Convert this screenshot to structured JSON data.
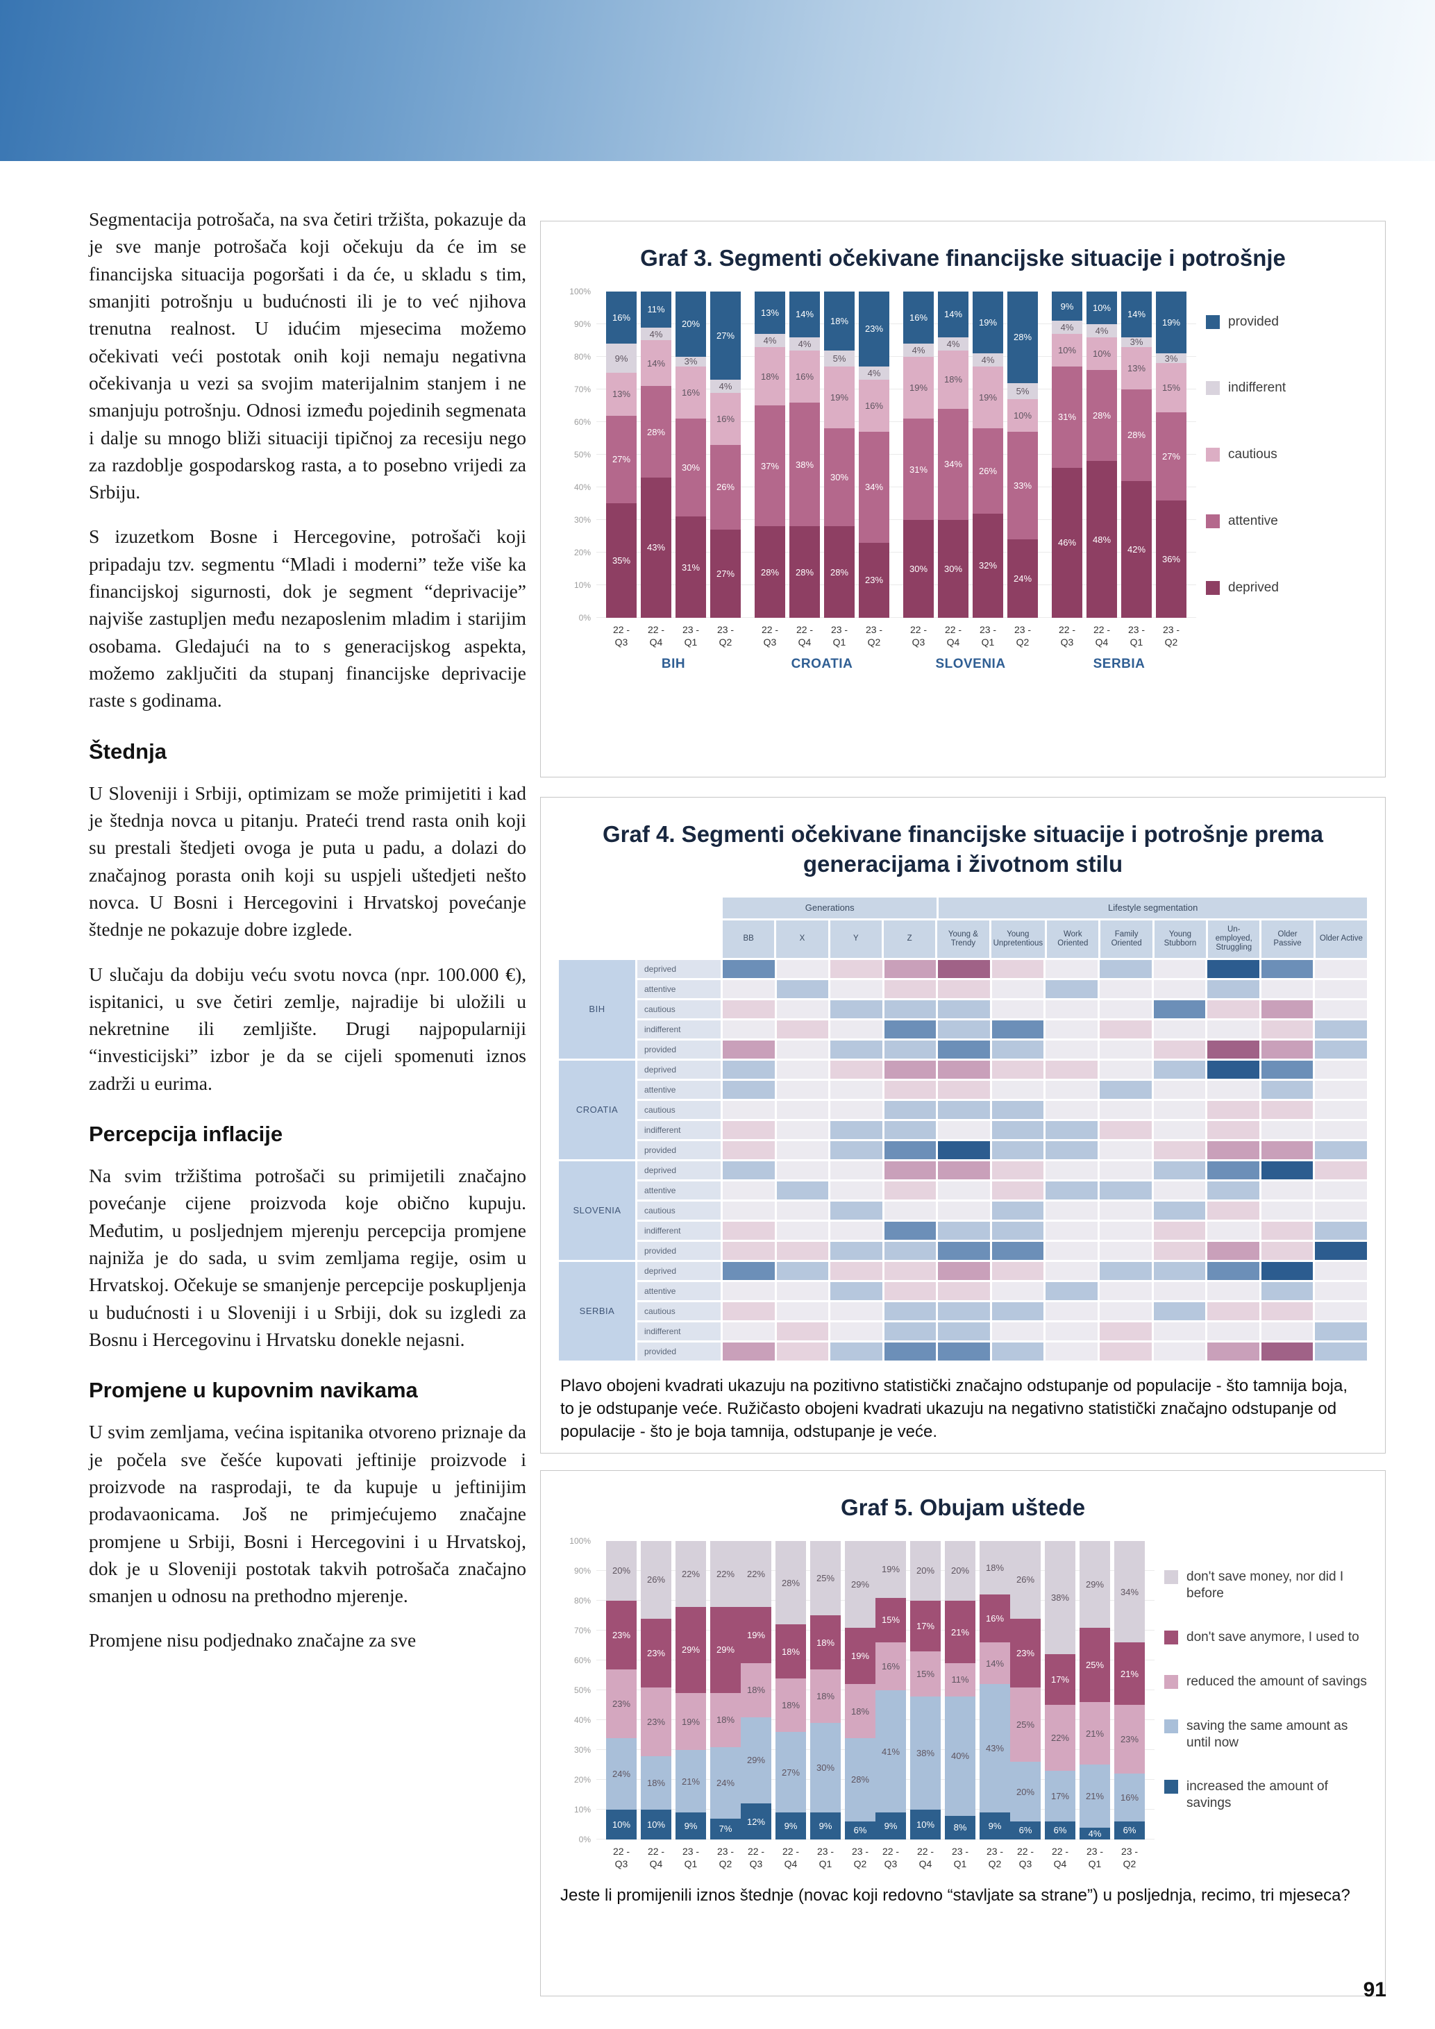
{
  "page": {
    "number": "91"
  },
  "article": {
    "sections": [
      {
        "type": "p",
        "text": "Segmentacija potrošača, na sva četiri tržišta, pokazuje da je sve manje potrošača koji očekuju da će im se financijska situacija pogoršati i da će, u skladu s tim, smanjiti potrošnju u budućnosti ili je to već njihova trenutna realnost. U idućim mjesecima možemo očekivati veći postotak onih koji nemaju negativna očekivanja u vezi sa svojim materijalnim stanjem i ne smanjuju potrošnju. Odnosi između pojedinih segmenata i dalje su mnogo bliži situaciji tipičnoj za recesiju nego za razdoblje gospodarskog rasta, a to posebno vrijedi za Srbiju."
      },
      {
        "type": "p",
        "text": "S izuzetkom Bosne i Hercegovine, potrošači koji pripadaju tzv. segmentu “Mladi i moderni” teže više ka financijskoj sigurnosti, dok je segment “deprivacije” najviše zastupljen među nezaposlenim mladim i starijim osobama. Gledajući na to s generacijskog aspekta, možemo zaključiti da stupanj financijske deprivacije raste s godinama."
      },
      {
        "type": "h",
        "text": "Štednja"
      },
      {
        "type": "p",
        "text": "U Sloveniji i Srbiji, optimizam se može primijetiti i kad je štednja novca u pitanju. Prateći trend rasta onih koji su prestali štedjeti ovoga je puta u padu, a dolazi do značajnog porasta onih koji su uspjeli uštedjeti nešto novca. U Bosni i Hercegovini i Hrvatskoj povećanje štednje ne pokazuje dobre izglede."
      },
      {
        "type": "p",
        "text": "U slučaju da dobiju veću svotu novca (npr. 100.000 €), ispitanici, u sve četiri zemlje, najradije bi uložili u nekretnine ili zemljište. Drugi najpopularniji “investicijski” izbor je da se cijeli spomenuti iznos zadrži u eurima."
      },
      {
        "type": "h",
        "text": "Percepcija inflacije"
      },
      {
        "type": "p",
        "text": "Na svim tržištima potrošači su primijetili značajno povećanje cijene proizvoda koje obično kupuju. Međutim, u posljednjem mjerenju percepcija promjene najniža je do sada, u svim zemljama regije, osim u Hrvatskoj. Očekuje se smanjenje percepcije poskupljenja u budućnosti i u Sloveniji i u Srbiji, dok su izgledi za Bosnu i Hercegovinu i Hrvatsku donekle nejasni."
      },
      {
        "type": "h",
        "text": "Promjene u kupovnim navikama"
      },
      {
        "type": "p",
        "text": "U svim zemljama, većina ispitanika otvoreno priznaje da je počela sve češće kupovati jeftinije proizvode i proizvode na rasprodaji, te da kupuje u jeftinijim prodavaonicama. Još ne primjećujemo značajne promjene u Srbiji, Bosni i Hercegovini i u Hrvatskoj, dok je u Sloveniji postotak takvih potrošača značajno smanjen u odnosu na prethodno mjerenje."
      },
      {
        "type": "p",
        "text": "Promjene nisu podjednako značajne za sve"
      }
    ]
  },
  "chart_data": [
    {
      "id": "graf3",
      "type": "bar",
      "stacked": true,
      "title": "Graf 3. Segmenti očekivane financijske situacije i potrošnje",
      "unit": "%",
      "ylim": [
        0,
        100
      ],
      "y_step": 10,
      "grid": true,
      "legend_position": "right",
      "show_group_labels": true,
      "x_ticks": [
        "22 - Q3",
        "22 - Q4",
        "23 - Q1",
        "23 - Q2"
      ],
      "series_order_bottom_to_top": [
        "deprived",
        "attentive",
        "cautious",
        "indifferent",
        "provided"
      ],
      "colors": [
        "#8e3f63",
        "#b4688c",
        "#dcaec4",
        "#d9d3dd",
        "#2d5f8d"
      ],
      "legend": [
        "provided",
        "indifferent",
        "cautious",
        "attentive",
        "deprived"
      ],
      "groups": [
        {
          "label": "BIH",
          "bars": [
            [
              35,
              27,
              13,
              9,
              16
            ],
            [
              43,
              28,
              14,
              4,
              11
            ],
            [
              31,
              30,
              16,
              3,
              20
            ],
            [
              27,
              26,
              16,
              4,
              27
            ]
          ]
        },
        {
          "label": "CROATIA",
          "bars": [
            [
              28,
              37,
              18,
              4,
              13
            ],
            [
              28,
              38,
              16,
              4,
              14
            ],
            [
              28,
              30,
              19,
              5,
              18
            ],
            [
              23,
              34,
              16,
              4,
              23
            ]
          ]
        },
        {
          "label": "SLOVENIA",
          "bars": [
            [
              30,
              31,
              19,
              4,
              16
            ],
            [
              30,
              34,
              18,
              4,
              14
            ],
            [
              32,
              26,
              19,
              4,
              19
            ],
            [
              24,
              33,
              10,
              5,
              28
            ]
          ]
        },
        {
          "label": "SERBIA",
          "bars": [
            [
              46,
              31,
              10,
              4,
              9
            ],
            [
              48,
              28,
              10,
              4,
              10
            ],
            [
              42,
              28,
              13,
              3,
              14
            ],
            [
              36,
              27,
              15,
              3,
              19
            ]
          ]
        }
      ]
    },
    {
      "id": "graf4",
      "type": "heatmap",
      "title": "Graf 4. Segmenti očekivane financijske situacije i potrošnje prema generacijama i životnom stilu",
      "caption": "Plavo obojeni kvadrati ukazuju na pozitivno statistički značajno odstupanje od populacije - što tamnija boja, to je odstupanje veće. Ružičasto obojeni kvadrati ukazuju na negativno statistički značajno odstupanje od populacije - što je boja tamnija, odstupanje je veće.",
      "col_groups": [
        {
          "label": "Generations",
          "span": 4
        },
        {
          "label": "Lifestyle segmentation",
          "span": 8
        }
      ],
      "columns": [
        "BB",
        "X",
        "Y",
        "Z",
        "Young & Trendy",
        "Young Unpretentious",
        "Work Oriented",
        "Family Oriented",
        "Young Stubborn",
        "Un-employed, Struggling",
        "Older Passive",
        "Older Active"
      ],
      "countries": [
        "BIH",
        "CROATIA",
        "SLOVENIA",
        "SERBIA"
      ],
      "row_labels": [
        "deprived",
        "attentive",
        "cautious",
        "indifferent",
        "provided"
      ],
      "scale_legend": "positive deviation = blue (darker = larger), negative deviation = pink (darker = larger)",
      "scale": {
        "3": "#2c5c8f",
        "2": "#6c8fb8",
        "1": "#b6c7dd",
        "0": "#eceaf0",
        "-1": "#e6d3de",
        "-2": "#c9a0ba",
        "-3": "#a06287"
      },
      "cells": {
        "BIH": {
          "deprived": [
            2,
            0,
            -1,
            -2,
            -3,
            -1,
            0,
            1,
            0,
            3,
            2,
            0
          ],
          "attentive": [
            0,
            1,
            0,
            -1,
            -1,
            0,
            1,
            0,
            0,
            1,
            0,
            0
          ],
          "cautious": [
            -1,
            0,
            1,
            1,
            1,
            0,
            0,
            0,
            2,
            -1,
            -2,
            0
          ],
          "indifferent": [
            0,
            -1,
            0,
            2,
            1,
            2,
            0,
            -1,
            0,
            0,
            -1,
            1
          ],
          "provided": [
            -2,
            0,
            1,
            1,
            2,
            1,
            0,
            0,
            -1,
            -3,
            -2,
            1
          ]
        },
        "CROATIA": {
          "deprived": [
            1,
            0,
            -1,
            -2,
            -2,
            -1,
            -1,
            0,
            1,
            3,
            2,
            0
          ],
          "attentive": [
            1,
            0,
            0,
            -1,
            -1,
            0,
            0,
            1,
            0,
            0,
            1,
            0
          ],
          "cautious": [
            0,
            0,
            0,
            1,
            1,
            1,
            0,
            0,
            0,
            -1,
            -1,
            0
          ],
          "indifferent": [
            -1,
            0,
            1,
            1,
            0,
            1,
            1,
            -1,
            0,
            -1,
            0,
            0
          ],
          "provided": [
            -1,
            0,
            1,
            2,
            3,
            1,
            1,
            0,
            -1,
            -2,
            -2,
            1
          ]
        },
        "SLOVENIA": {
          "deprived": [
            1,
            0,
            0,
            -2,
            -2,
            -1,
            0,
            0,
            1,
            2,
            3,
            -1
          ],
          "attentive": [
            0,
            1,
            0,
            -1,
            0,
            -1,
            1,
            1,
            0,
            1,
            0,
            0
          ],
          "cautious": [
            0,
            0,
            1,
            0,
            0,
            1,
            0,
            0,
            1,
            -1,
            0,
            0
          ],
          "indifferent": [
            -1,
            0,
            0,
            2,
            1,
            1,
            0,
            0,
            -1,
            0,
            -1,
            1
          ],
          "provided": [
            -1,
            -1,
            1,
            1,
            2,
            2,
            0,
            0,
            -1,
            -2,
            -1,
            3
          ]
        },
        "SERBIA": {
          "deprived": [
            2,
            1,
            -1,
            -1,
            -2,
            -1,
            0,
            1,
            1,
            2,
            3,
            0
          ],
          "attentive": [
            0,
            0,
            1,
            -1,
            -1,
            0,
            1,
            0,
            0,
            0,
            1,
            0
          ],
          "cautious": [
            -1,
            0,
            0,
            1,
            1,
            1,
            0,
            0,
            1,
            -1,
            -1,
            0
          ],
          "indifferent": [
            0,
            -1,
            0,
            1,
            1,
            0,
            0,
            -1,
            0,
            0,
            0,
            1
          ],
          "provided": [
            -2,
            -1,
            1,
            2,
            2,
            1,
            0,
            -1,
            0,
            -2,
            -3,
            1
          ]
        }
      }
    },
    {
      "id": "graf5",
      "type": "bar",
      "stacked": true,
      "title": "Graf 5. Obujam uštede",
      "caption": "Jeste li promijenili iznos štednje (novac koji redovno “stavljate sa strane”) u posljednja, recimo, tri mjeseca?",
      "unit": "%",
      "ylim": [
        0,
        100
      ],
      "y_step": 10,
      "grid": true,
      "legend_position": "right",
      "show_group_labels": false,
      "x_ticks": [
        "22 - Q3",
        "22 - Q4",
        "23 - Q1",
        "23 - Q2"
      ],
      "series_order_bottom_to_top": [
        "increased the amount of savings",
        "saving the same amount as until now",
        "reduced the amount of savings",
        "don't save anymore, I used to",
        "don't save money, nor did I before"
      ],
      "colors": [
        "#2d5f8d",
        "#a9bfd9",
        "#d4a7bf",
        "#a05075",
        "#d6d0da"
      ],
      "legend": [
        "don't save money, nor did I before",
        "don't save anymore, I used to",
        "reduced the amount of savings",
        "saving the same amount as until now",
        "increased the amount of savings"
      ],
      "groups": [
        {
          "label": "BIH",
          "bars": [
            [
              10,
              24,
              23,
              23,
              20
            ],
            [
              10,
              18,
              23,
              23,
              26
            ],
            [
              9,
              21,
              19,
              29,
              22
            ],
            [
              7,
              24,
              18,
              29,
              22
            ]
          ]
        },
        {
          "label": "CROATIA",
          "bars": [
            [
              12,
              29,
              18,
              19,
              22
            ],
            [
              9,
              27,
              18,
              18,
              28
            ],
            [
              9,
              30,
              18,
              18,
              25
            ],
            [
              6,
              28,
              18,
              19,
              29
            ]
          ]
        },
        {
          "label": "SLOVENIA",
          "bars": [
            [
              9,
              41,
              16,
              15,
              19
            ],
            [
              10,
              38,
              15,
              17,
              20
            ],
            [
              8,
              40,
              11,
              21,
              20
            ],
            [
              9,
              43,
              14,
              16,
              18
            ]
          ]
        },
        {
          "label": "SERBIA",
          "bars": [
            [
              6,
              20,
              25,
              23,
              26
            ],
            [
              6,
              17,
              22,
              17,
              38
            ],
            [
              4,
              21,
              21,
              25,
              29
            ],
            [
              6,
              16,
              23,
              21,
              34
            ]
          ]
        }
      ]
    }
  ]
}
